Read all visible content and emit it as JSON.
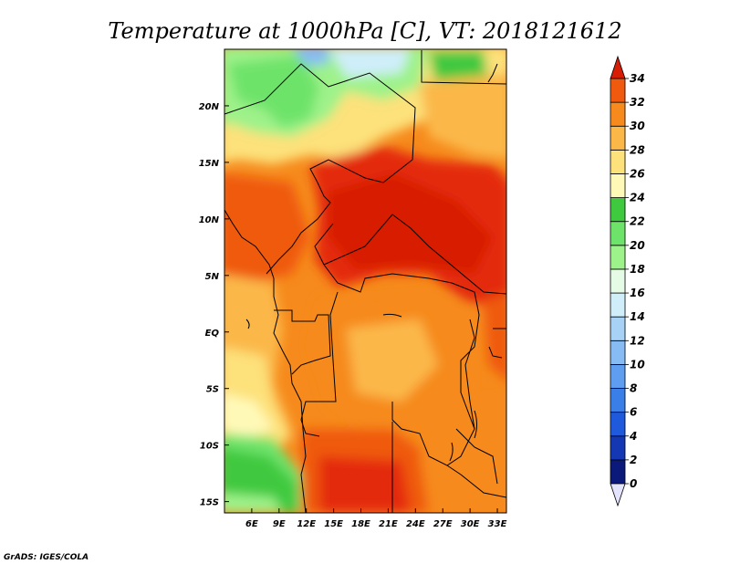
{
  "title": "Temperature at 1000hPa [C], VT: 2018121612",
  "credit": "GrADS: IGES/COLA",
  "map": {
    "lon_range": [
      3,
      34
    ],
    "lat_range": [
      -16,
      25
    ],
    "x_ticks": [
      "6E",
      "9E",
      "12E",
      "15E",
      "18E",
      "21E",
      "24E",
      "27E",
      "30E",
      "33E"
    ],
    "y_ticks": [
      "20N",
      "15N",
      "10N",
      "5N",
      "EQ",
      "5S",
      "10S",
      "15S"
    ]
  },
  "colorbar": {
    "labels": [
      "0",
      "2",
      "4",
      "6",
      "8",
      "10",
      "12",
      "14",
      "16",
      "18",
      "20",
      "22",
      "24",
      "26",
      "28",
      "30",
      "32",
      "34"
    ],
    "colors": [
      "#0b1a7a",
      "#1438b4",
      "#1f59dc",
      "#3a7ee8",
      "#5f9df0",
      "#87bbf4",
      "#a7d2f6",
      "#cfeefa",
      "#e5fbe6",
      "#9ef28a",
      "#6ee36a",
      "#3fc93f",
      "#fff9b8",
      "#fde17a",
      "#fbb848",
      "#f68a1c",
      "#ef5a0e",
      "#e42a07"
    ],
    "under_color": "#e4e4ff",
    "over_color": "#d71d05"
  },
  "regions": {
    "north_green": "cool-green-sahara",
    "central_hot": "hot-red-central",
    "south_orange": "orange-congo",
    "southwest_green": "cool-green-angola"
  }
}
